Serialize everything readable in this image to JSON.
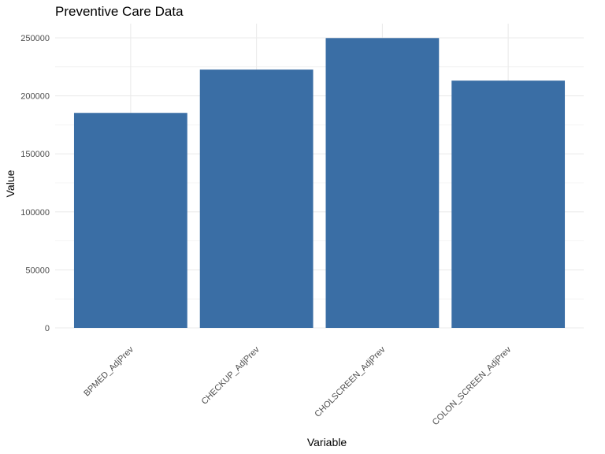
{
  "chart_data": {
    "type": "bar",
    "title": "Preventive Care Data",
    "xlabel": "Variable",
    "ylabel": "Value",
    "categories": [
      "BPMED_AdjPrev",
      "CHECKUP_AdjPrev",
      "CHOLSCREEN_AdjPrev",
      "COLON_SCREEN_AdjPrev"
    ],
    "values": [
      185300,
      222600,
      249800,
      213100
    ],
    "ylim": [
      0,
      262000
    ],
    "yticks": [
      0,
      50000,
      100000,
      150000,
      200000,
      250000
    ],
    "ytick_labels": [
      "0",
      "50000",
      "100000",
      "150000",
      "200000",
      "250000"
    ],
    "bar_color": "#3A6EA5",
    "grid": true,
    "grid_color": "#EBEBEB",
    "legend": "none",
    "theme": "minimal"
  }
}
